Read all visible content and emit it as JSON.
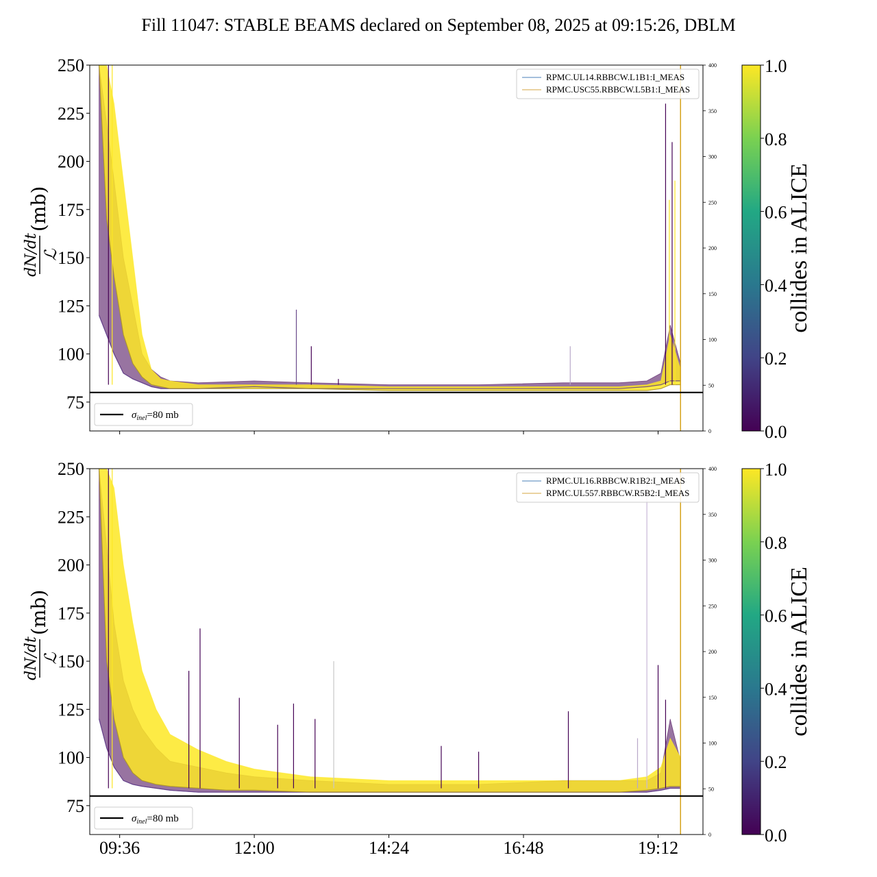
{
  "chart_data": {
    "title": "Fill 11047: STABLE BEAMS declared on September 08, 2025 at 09:15:26, DBLM",
    "xticks": [
      "09:36",
      "12:00",
      "14:24",
      "16:48",
      "19:12"
    ],
    "x_range": [
      "09:04",
      "20:00"
    ],
    "ylim": [
      60,
      250
    ],
    "yticks": [
      75,
      100,
      125,
      150,
      175,
      200,
      225,
      250
    ],
    "ylabel": {
      "num": "dN/dt",
      "den": "ℒ",
      "unit": "(mb)"
    },
    "secondary_ylim": [
      0,
      400
    ],
    "secondary_yticks": [
      0,
      50,
      100,
      150,
      200,
      250,
      300,
      350,
      400
    ],
    "hline": {
      "y": 80,
      "legend_symbol": "σ",
      "legend_sub": "inel",
      "legend_rest": "=80 mb"
    },
    "colorbar": {
      "label": "collides in ALICE",
      "ticks": [
        "0.0",
        "0.2",
        "0.4",
        "0.6",
        "0.8",
        "1.0"
      ],
      "cmap": "viridis",
      "range": [
        0,
        1
      ]
    },
    "panels": [
      {
        "type": "line",
        "legend": [
          "RPMC.UL14.RBBCW.L1B1:I_MEAS",
          "RPMC.USC55.RBBCW.L5B1:I_MEAS"
        ],
        "legend_colors": [
          "#4a7fb8",
          "#d5a542"
        ],
        "end_marker_x": "19:36",
        "band_yellow": {
          "x": [
            "09:04",
            "09:14",
            "09:22",
            "09:30",
            "09:40",
            "09:50",
            "10:00",
            "10:10",
            "10:20",
            "10:30",
            "10:45",
            "11:00",
            "12:00",
            "13:00",
            "14:24",
            "16:00",
            "17:30",
            "18:30",
            "19:00",
            "19:15",
            "19:25",
            "19:36"
          ],
          "hi": [
            250,
            250,
            250,
            230,
            190,
            150,
            110,
            92,
            87,
            86,
            85,
            84,
            84,
            84,
            83,
            83,
            83,
            83,
            84,
            86,
            110,
            92
          ],
          "lo": [
            250,
            250,
            170,
            140,
            110,
            95,
            88,
            84,
            83,
            82,
            82,
            82,
            82,
            82,
            81,
            81,
            81,
            81,
            81,
            82,
            84,
            84
          ]
        },
        "band_purple": {
          "x": [
            "09:14",
            "09:22",
            "09:30",
            "09:40",
            "09:50",
            "10:00",
            "10:10",
            "10:20",
            "10:30",
            "11:00",
            "12:00",
            "13:00",
            "14:24",
            "16:00",
            "17:30",
            "18:30",
            "19:00",
            "19:15",
            "19:25",
            "19:36"
          ],
          "hi": [
            250,
            220,
            190,
            150,
            125,
            100,
            92,
            88,
            86,
            85,
            86,
            85,
            84,
            84,
            85,
            85,
            86,
            90,
            115,
            95
          ],
          "lo": [
            120,
            110,
            100,
            90,
            87,
            85,
            83,
            82,
            82,
            82,
            83,
            82,
            82,
            82,
            82,
            82,
            83,
            84,
            86,
            86
          ]
        },
        "spikes": [
          {
            "x": "12:45",
            "y": 123,
            "c": "#6a4a8a"
          },
          {
            "x": "13:01",
            "y": 104,
            "c": "#440154"
          },
          {
            "x": "13:30",
            "y": 87,
            "c": "#440154"
          },
          {
            "x": "17:38",
            "y": 104,
            "c": "#b8a8c8"
          },
          {
            "x": "19:20",
            "y": 230,
            "c": "#440154"
          },
          {
            "x": "19:24",
            "y": 180,
            "c": "#fde725"
          },
          {
            "x": "19:27",
            "y": 210,
            "c": "#440154"
          },
          {
            "x": "19:30",
            "y": 190,
            "c": "#fde725"
          },
          {
            "x": "09:24",
            "y": 250,
            "c": "#440154"
          },
          {
            "x": "09:28",
            "y": 250,
            "c": "#fde725"
          }
        ]
      },
      {
        "type": "line",
        "legend": [
          "RPMC.UL16.RBBCW.R1B2:I_MEAS",
          "RPMC.UL557.RBBCW.R5B2:I_MEAS"
        ],
        "legend_colors": [
          "#4a7fb8",
          "#d5a542"
        ],
        "end_marker_x": "19:36",
        "band_yellow": {
          "x": [
            "09:04",
            "09:14",
            "09:22",
            "09:30",
            "09:40",
            "09:50",
            "10:00",
            "10:15",
            "10:30",
            "11:00",
            "11:30",
            "12:00",
            "13:00",
            "14:24",
            "16:00",
            "17:30",
            "18:30",
            "19:00",
            "19:15",
            "19:25",
            "19:36"
          ],
          "hi": [
            250,
            250,
            250,
            240,
            200,
            170,
            145,
            125,
            112,
            104,
            98,
            94,
            90,
            88,
            88,
            88,
            88,
            90,
            95,
            110,
            100
          ],
          "lo": [
            250,
            250,
            150,
            120,
            100,
            92,
            88,
            86,
            85,
            84,
            83,
            83,
            82,
            82,
            82,
            82,
            82,
            83,
            84,
            85,
            85
          ]
        },
        "band_purple": {
          "x": [
            "09:14",
            "09:22",
            "09:30",
            "09:40",
            "09:50",
            "10:00",
            "10:15",
            "10:30",
            "11:00",
            "11:30",
            "12:00",
            "13:00",
            "14:24",
            "16:00",
            "17:30",
            "18:30",
            "19:00",
            "19:15",
            "19:25",
            "19:36"
          ],
          "hi": [
            250,
            210,
            170,
            140,
            125,
            115,
            105,
            98,
            95,
            92,
            90,
            88,
            86,
            86,
            88,
            88,
            88,
            92,
            120,
            98
          ],
          "lo": [
            120,
            105,
            95,
            88,
            86,
            85,
            84,
            83,
            82,
            82,
            82,
            82,
            82,
            82,
            82,
            82,
            82,
            83,
            84,
            84
          ]
        },
        "spikes": [
          {
            "x": "10:50",
            "y": 145,
            "c": "#440154"
          },
          {
            "x": "11:02",
            "y": 167,
            "c": "#440154"
          },
          {
            "x": "11:44",
            "y": 131,
            "c": "#440154"
          },
          {
            "x": "12:25",
            "y": 117,
            "c": "#440154"
          },
          {
            "x": "12:42",
            "y": 128,
            "c": "#440154"
          },
          {
            "x": "13:05",
            "y": 120,
            "c": "#440154"
          },
          {
            "x": "13:25",
            "y": 150,
            "c": "#c8c8c8"
          },
          {
            "x": "15:20",
            "y": 106,
            "c": "#440154"
          },
          {
            "x": "16:00",
            "y": 103,
            "c": "#440154"
          },
          {
            "x": "17:36",
            "y": 124,
            "c": "#440154"
          },
          {
            "x": "18:50",
            "y": 110,
            "c": "#b8a8c8"
          },
          {
            "x": "19:00",
            "y": 245,
            "c": "#c8b8d8"
          },
          {
            "x": "19:12",
            "y": 148,
            "c": "#440154"
          },
          {
            "x": "19:20",
            "y": 130,
            "c": "#440154"
          },
          {
            "x": "09:24",
            "y": 250,
            "c": "#440154"
          },
          {
            "x": "09:28",
            "y": 250,
            "c": "#fde725"
          }
        ]
      }
    ]
  }
}
